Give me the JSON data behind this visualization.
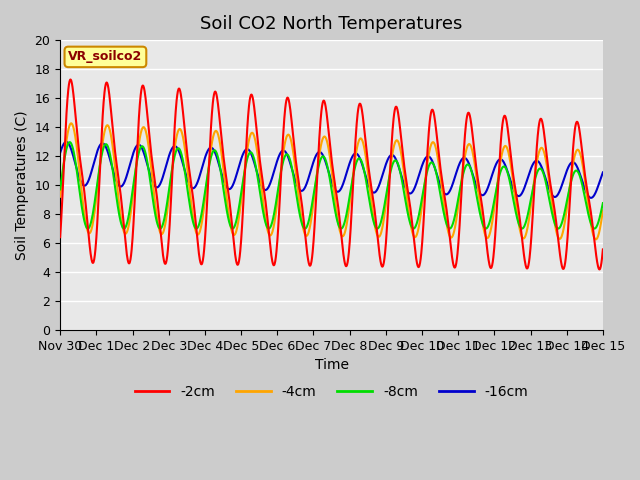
{
  "title": "Soil CO2 North Temperatures",
  "xlabel": "Time",
  "ylabel": "Soil Temperatures (C)",
  "ylim": [
    0,
    20
  ],
  "legend_items": [
    "-2cm",
    "-4cm",
    "-8cm",
    "-16cm"
  ],
  "legend_colors": [
    "#ff0000",
    "#ffa500",
    "#00dd00",
    "#0000cc"
  ],
  "annotation_text": "VR_soilco2",
  "annotation_bg": "#ffff99",
  "annotation_border": "#cc8800",
  "xtick_labels": [
    "Nov 30",
    "Dec 1",
    "Dec 2",
    "Dec 3",
    "Dec 4",
    "Dec 5",
    "Dec 6",
    "Dec 7",
    "Dec 8",
    "Dec 9",
    "Dec 10",
    "Dec 11",
    "Dec 12",
    "Dec 13",
    "Dec 14",
    "Dec 15"
  ],
  "grid_color": "#ffffff",
  "line_width": 1.5,
  "title_fontsize": 13,
  "axis_fontsize": 10,
  "tick_fontsize": 9
}
